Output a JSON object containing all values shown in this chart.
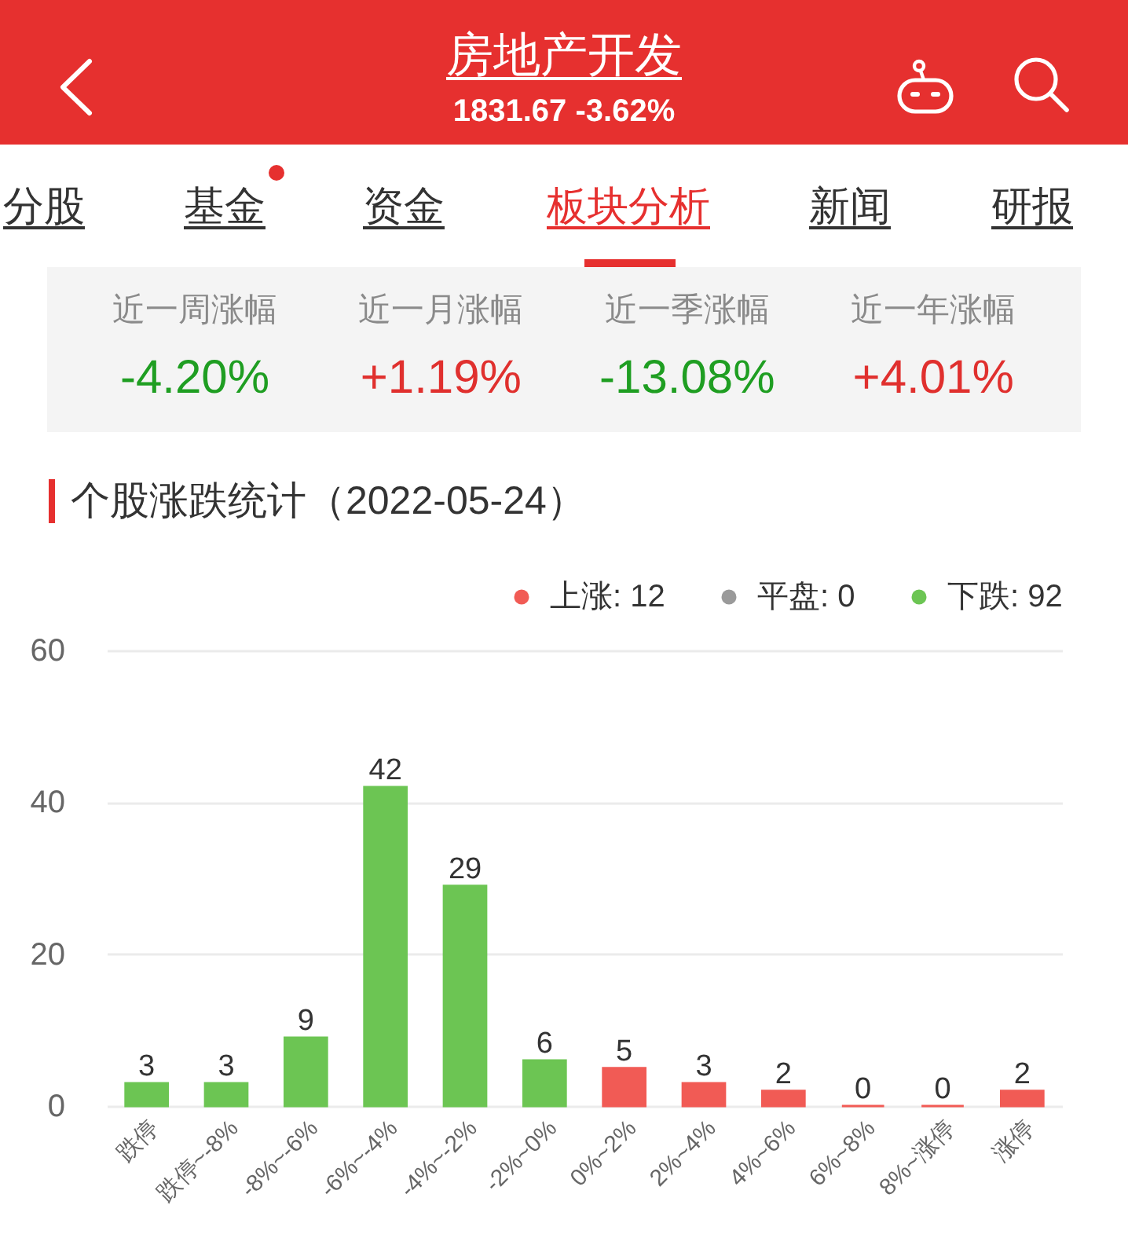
{
  "chart_data": {
    "type": "bar",
    "title": "个股涨跌统计（2022-05-24）",
    "annotations": [
      "房地产开发",
      "1831.67 -3.62%",
      "分股",
      "基金",
      "资金",
      "板块分析",
      "新闻",
      "研报",
      "近一周涨幅",
      "-4.20%",
      "近一月涨幅",
      "+1.19%",
      "近一季涨幅",
      "-13.08%",
      "近一年涨幅",
      "+4.01%"
    ],
    "categories": [
      "跌停",
      "跌停~-8%",
      "-8%~-6%",
      "-6%~-4%",
      "-4%~-2%",
      "-2%~0%",
      "0%~2%",
      "2%~4%",
      "4%~6%",
      "6%~8%",
      "8%~涨停",
      "涨停"
    ],
    "series": [
      {
        "name": "上涨: 12",
        "color": "#f15b55",
        "values": [
          null,
          null,
          null,
          null,
          null,
          null,
          5,
          3,
          2,
          0,
          0,
          2
        ]
      },
      {
        "name": "平盘: 0",
        "color": "#9a9a9a",
        "values": [
          null,
          null,
          null,
          null,
          null,
          null,
          null,
          null,
          null,
          null,
          null,
          null
        ]
      },
      {
        "name": "下跌: 92",
        "color": "#6cc553",
        "values": [
          3,
          3,
          9,
          42,
          29,
          6,
          null,
          null,
          null,
          null,
          null,
          null
        ]
      }
    ],
    "stacked": true,
    "ylim": [
      0,
      60
    ],
    "yticks": [
      0,
      20,
      40,
      60
    ],
    "grid": "y",
    "legend": "top right",
    "data_labels": true
  }
}
